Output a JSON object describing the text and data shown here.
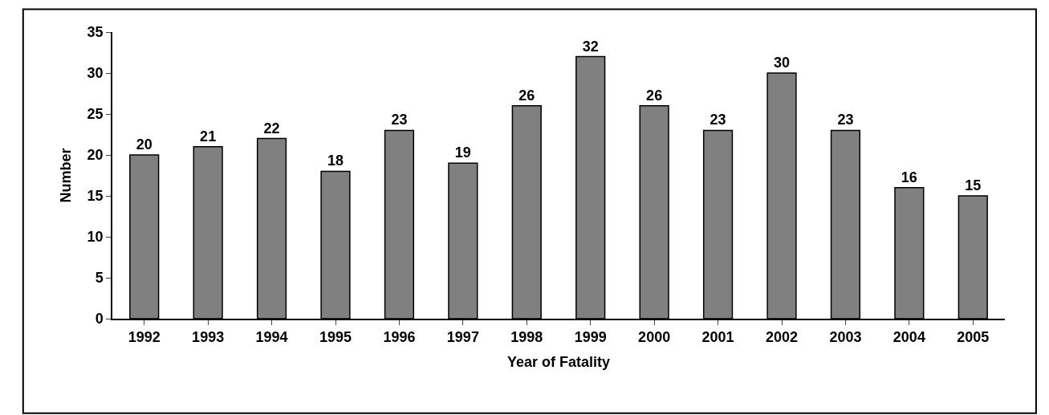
{
  "chart_data": {
    "type": "bar",
    "xlabel": "Year of Fatality",
    "ylabel": "Number",
    "categories": [
      "1992",
      "1993",
      "1994",
      "1995",
      "1996",
      "1997",
      "1998",
      "1999",
      "2000",
      "2001",
      "2002",
      "2003",
      "2004",
      "2005"
    ],
    "values": [
      20,
      21,
      22,
      18,
      23,
      19,
      26,
      32,
      26,
      23,
      30,
      23,
      16,
      15
    ],
    "color": "#808080",
    "ylim": [
      0,
      35
    ],
    "yticks": [
      0,
      5,
      10,
      15,
      20,
      25,
      30,
      35
    ],
    "grid": false,
    "legend": false,
    "data_labels": true
  }
}
